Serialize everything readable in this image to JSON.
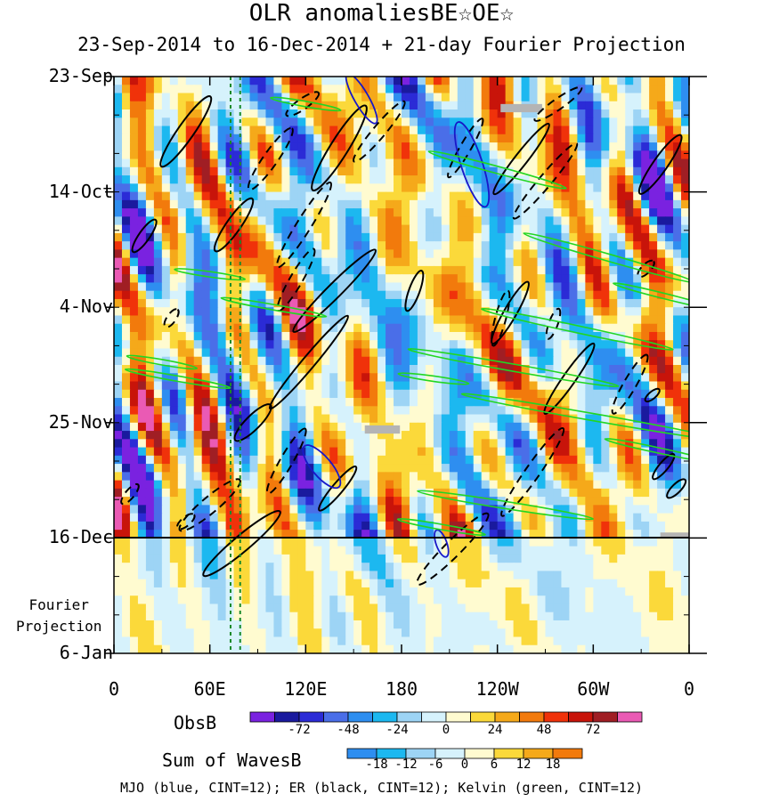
{
  "chart_data": {
    "type": "heatmap",
    "title": "OLR anomaliesBE☆OE☆",
    "subtitle": "23-Sep-2014 to 16-Dec-2014 + 21-day Fourier Projection",
    "x_axis": {
      "ticks": [
        "0",
        "60E",
        "120E",
        "180",
        "120W",
        "60W",
        "0"
      ],
      "tick_values": [
        0,
        60,
        120,
        180,
        240,
        300,
        360
      ],
      "range": [
        0,
        360
      ]
    },
    "y_axis": {
      "ticks": [
        "23-Sep",
        "14-Oct",
        "4-Nov",
        "25-Nov",
        "16-Dec",
        "6-Jan"
      ],
      "tick_days": [
        0,
        21,
        42,
        63,
        84,
        105
      ],
      "range_days": [
        0,
        105
      ],
      "inverted": true
    },
    "projection_start_day": 84,
    "projection_label": [
      "Fourier",
      "Projection"
    ],
    "vertical_markers_lon": [
      73,
      79
    ],
    "missing_patches": [
      {
        "lon": [
          242,
          268
        ],
        "day": [
          5,
          6.5
        ]
      },
      {
        "lon": [
          157,
          179
        ],
        "day": [
          63.5,
          65
        ]
      },
      {
        "lon": [
          342,
          360
        ],
        "day": [
          83,
          84
        ]
      }
    ],
    "colorbars": [
      {
        "name": "ObsB",
        "colors": [
          "#7a22e0",
          "#1a1a9e",
          "#2b2bd6",
          "#4a6ee8",
          "#2e8ef0",
          "#1cb8f0",
          "#9dd4f5",
          "#d6f2fc",
          "#fffbd0",
          "#fbd93a",
          "#f5a91a",
          "#f27a0c",
          "#f0320a",
          "#c8140a",
          "#a01e24",
          "#ea5ab4"
        ],
        "labels": [
          "-72",
          "-48",
          "-24",
          "0",
          "24",
          "48",
          "72"
        ],
        "label_positions": [
          2,
          4,
          6,
          8,
          10,
          12,
          14
        ]
      },
      {
        "name": "Sum of WavesB",
        "colors": [
          "#2e8ef0",
          "#1cb8f0",
          "#9dd4f5",
          "#d6f2fc",
          "#fffbd0",
          "#fbd93a",
          "#f5a91a",
          "#f27a0c"
        ],
        "labels": [
          "-18",
          "-12",
          "-6",
          "0",
          "6",
          "12",
          "18"
        ],
        "label_positions": [
          1,
          2,
          3,
          4,
          5,
          6,
          7
        ]
      }
    ],
    "wave_contours": [
      {
        "name": "MJO",
        "color": "#1818c8",
        "cint": 12
      },
      {
        "name": "ER",
        "color": "#000000",
        "cint": 12
      },
      {
        "name": "Kelvin",
        "color": "#22d622",
        "cint": 12
      }
    ],
    "footer": "MJO (blue, CINT=12); ER (black, CINT=12); Kelvin (green, CINT=12)"
  }
}
